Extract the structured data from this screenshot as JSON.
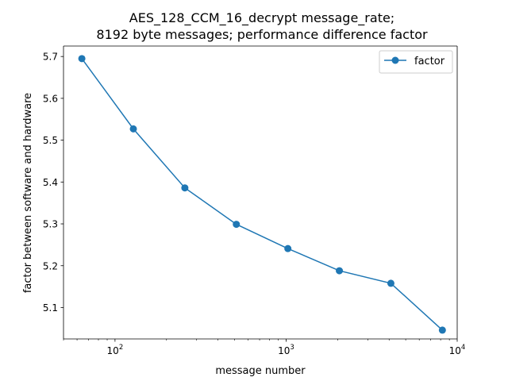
{
  "chart_data": {
    "type": "line",
    "title_lines": [
      "AES_128_CCM_16_decrypt message_rate;",
      "8192 byte messages; performance difference factor"
    ],
    "xlabel": "message number",
    "ylabel": "factor between software and hardware",
    "x_scale": "log",
    "xlim": [
      50,
      10000
    ],
    "ylim": [
      5.025,
      5.725
    ],
    "x_ticks": [
      {
        "value": 100,
        "base": "10",
        "exp": "2"
      },
      {
        "value": 1000,
        "base": "10",
        "exp": "3"
      },
      {
        "value": 10000,
        "base": "10",
        "exp": "4"
      }
    ],
    "y_ticks": [
      {
        "value": 5.1,
        "label": "5.1"
      },
      {
        "value": 5.2,
        "label": "5.2"
      },
      {
        "value": 5.3,
        "label": "5.3"
      },
      {
        "value": 5.4,
        "label": "5.4"
      },
      {
        "value": 5.5,
        "label": "5.5"
      },
      {
        "value": 5.6,
        "label": "5.6"
      },
      {
        "value": 5.7,
        "label": "5.7"
      }
    ],
    "grid": false,
    "legend_position": "top-right",
    "series": [
      {
        "name": "factor",
        "color": "#1f77b4",
        "marker": "circle",
        "x": [
          64,
          128,
          256,
          512,
          1024,
          2048,
          4096,
          8192
        ],
        "y": [
          5.695,
          5.527,
          5.386,
          5.299,
          5.241,
          5.188,
          5.158,
          5.046
        ]
      }
    ]
  }
}
